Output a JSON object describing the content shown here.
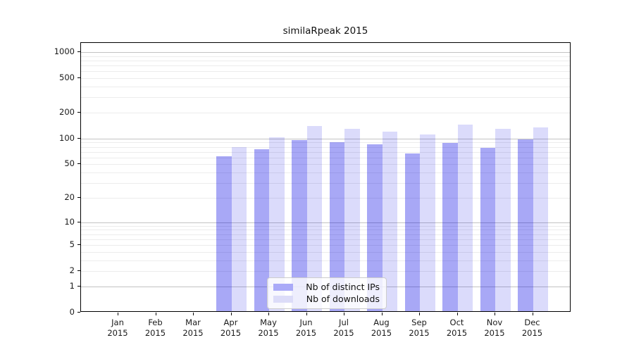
{
  "chart_data": {
    "type": "bar",
    "title": "similaRpeak 2015",
    "categories": [
      "Jan",
      "Feb",
      "Mar",
      "Apr",
      "May",
      "Jun",
      "Jul",
      "Aug",
      "Sep",
      "Oct",
      "Nov",
      "Dec"
    ],
    "x_tick_second_line": "2015",
    "series": [
      {
        "name": "Nb of distinct IPs",
        "swatch_hex": "#aaaaf8",
        "fill_rgba": "rgba(0,0,230,0.34)",
        "values": [
          0,
          0,
          0,
          60,
          73,
          92,
          87,
          82,
          65,
          85,
          75,
          95
        ]
      },
      {
        "name": "Nb of downloads",
        "swatch_hex": "#dcdcf8",
        "fill_rgba": "rgba(0,0,230,0.14)",
        "values": [
          0,
          0,
          0,
          76,
          100,
          134,
          124,
          117,
          107,
          140,
          126,
          131
        ]
      }
    ],
    "xlabel": "",
    "ylabel": "",
    "y_axis": {
      "scale": "log1p",
      "tick_values": [
        0,
        1,
        2,
        5,
        10,
        20,
        50,
        100,
        200,
        500,
        1000
      ],
      "ylim": [
        0,
        1000
      ]
    },
    "grid": {
      "enabled": true,
      "major_values": [
        1,
        10,
        100,
        1000
      ],
      "minor_values": [
        2,
        3,
        4,
        5,
        6,
        7,
        8,
        9,
        20,
        30,
        40,
        50,
        60,
        70,
        80,
        90,
        200,
        300,
        400,
        500,
        600,
        700,
        800,
        900
      ]
    },
    "legend": {
      "position": "lower center-left inside plot",
      "entries": [
        "Nb of distinct IPs",
        "Nb of downloads"
      ]
    },
    "colors": {
      "bar_distinct_ips_on_white": "#aaaaf8",
      "bar_downloads_on_white": "#dcdcf8",
      "grid_major": "#c3c3c3",
      "grid_minor": "#ececec",
      "axis": "#000000"
    }
  }
}
